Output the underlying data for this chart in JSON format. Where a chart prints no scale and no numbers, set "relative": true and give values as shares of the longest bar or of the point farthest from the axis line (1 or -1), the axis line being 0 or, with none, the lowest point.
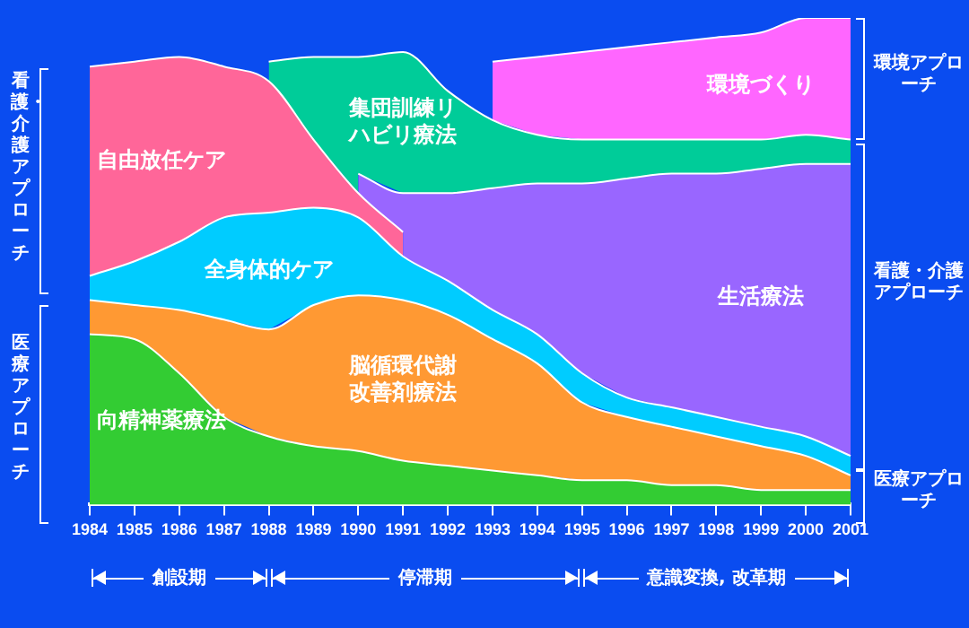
{
  "chart_data": {
    "type": "area",
    "stacked": true,
    "relative": true,
    "legend": false,
    "categories": [
      "1984",
      "1985",
      "1986",
      "1987",
      "1988",
      "1989",
      "1990",
      "1991",
      "1992",
      "1993",
      "1994",
      "1995",
      "1996",
      "1997",
      "1998",
      "1999",
      "2000",
      "2001"
    ],
    "series": [
      {
        "name": "向精神薬療法",
        "color": "#33cc33",
        "values": [
          0.35,
          0.34,
          0.27,
          0.18,
          0.14,
          0.12,
          0.11,
          0.09,
          0.08,
          0.07,
          0.06,
          0.05,
          0.05,
          0.04,
          0.04,
          0.03,
          0.03,
          0.03
        ]
      },
      {
        "name": "脳循環代謝改善剤療法",
        "color": "#ff9933",
        "values": [
          0.07,
          0.07,
          0.13,
          0.2,
          0.22,
          0.29,
          0.32,
          0.33,
          0.31,
          0.27,
          0.23,
          0.16,
          0.13,
          0.12,
          0.1,
          0.09,
          0.07,
          0.03
        ]
      },
      {
        "name": "全身体的ケア",
        "color": "#00ccff",
        "values": [
          0.05,
          0.09,
          0.14,
          0.21,
          0.24,
          0.2,
          0.16,
          0.09,
          0.07,
          0.06,
          0.06,
          0.06,
          0.04,
          0.04,
          0.04,
          0.04,
          0.04,
          0.04
        ]
      },
      {
        "name": "自由放任ケア",
        "color": "#ff6699",
        "values": [
          0.43,
          0.41,
          0.38,
          0.31,
          0.27,
          0.14,
          0.05,
          0.05,
          null,
          null,
          null,
          null,
          null,
          null,
          null,
          null,
          null,
          null
        ]
      },
      {
        "name": "生活療法",
        "color": "#9966ff",
        "values": [
          null,
          null,
          null,
          null,
          null,
          null,
          0.04,
          0.08,
          0.18,
          0.25,
          0.31,
          0.39,
          0.45,
          0.48,
          0.5,
          0.53,
          0.56,
          0.6
        ]
      },
      {
        "name": "集団訓練リハビリ療法",
        "color": "#00cc99",
        "values": [
          null,
          null,
          null,
          null,
          0.04,
          0.17,
          0.24,
          0.29,
          0.21,
          0.14,
          0.1,
          0.09,
          0.08,
          0.07,
          0.07,
          0.06,
          0.06,
          0.05
        ]
      },
      {
        "name": "環境づくり",
        "color": "#ff66ff",
        "values": [
          null,
          null,
          null,
          null,
          null,
          null,
          null,
          null,
          null,
          0.12,
          0.16,
          0.18,
          0.19,
          0.2,
          0.21,
          0.22,
          0.24,
          0.25
        ]
      }
    ],
    "annotations": [
      "看護・介護アプローチ",
      "医療アプローチ",
      "環境アプローチ",
      "看護・介護アプローチ",
      "医療アプローチ",
      "創設期",
      "停滞期",
      "意識変換, 改革期"
    ]
  }
}
